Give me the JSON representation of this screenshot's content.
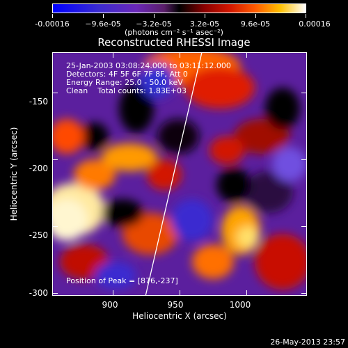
{
  "colorbar": {
    "ticks": [
      "-0.00016",
      "−9.6e-05",
      "−3.2e-05",
      "3.2e-05",
      "9.6e-05",
      "0.00016"
    ],
    "unit_label": "(photons cm⁻² s⁻¹ asec⁻²)"
  },
  "chart_data": {
    "type": "heatmap",
    "title": "Reconstructed RHESSI Image",
    "xlabel": "Heliocentric X (arcsec)",
    "ylabel": "Heliocentric Y (arcsec)",
    "xlim": [
      855,
      1045
    ],
    "ylim": [
      -302,
      -120
    ],
    "x_ticks": [
      "900",
      "950",
      "1000"
    ],
    "y_ticks": [
      "-150",
      "-200",
      "-250",
      "-300"
    ],
    "annotations": [
      "25-Jan-2003 03:08:24.000 to 03:11:12.000",
      "Detectors: 4F 5F 6F 7F 8F, Att 0",
      "Energy Range: 25.0 - 50.0 keV",
      "Clean    Total counts: 1.83E+03"
    ],
    "peak_label": "Position of Peak = [876,-237]",
    "limb_line": [
      [
        924,
        -302
      ],
      [
        966,
        -120
      ]
    ]
  },
  "footer": {
    "date": "26-May-2013 23:57"
  }
}
